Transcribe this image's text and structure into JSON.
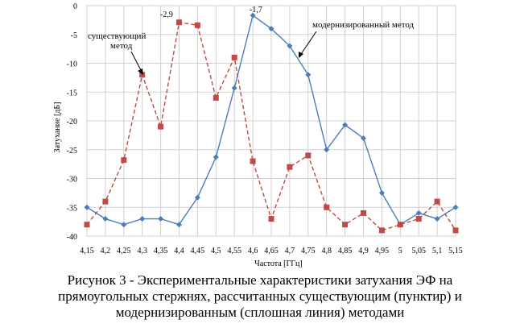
{
  "chart_data": {
    "type": "line",
    "xlabel": "Частота [ГГц]",
    "ylabel": "Затухание [дБ]",
    "categories": [
      "4,15",
      "4,2",
      "4,25",
      "4,3",
      "4,35",
      "4,4",
      "4,45",
      "4,5",
      "4,55",
      "4,6",
      "4,65",
      "4,7",
      "4,75",
      "4,8",
      "4,85",
      "4,9",
      "4,95",
      "5",
      "5,05",
      "5,1",
      "5,15"
    ],
    "y_ticks": [
      "0",
      "-5",
      "-10",
      "-15",
      "-20",
      "-25",
      "-30",
      "-35",
      "-40"
    ],
    "ylim": [
      -40,
      0
    ],
    "grid": true,
    "legend": "none",
    "series": [
      {
        "key": "modern",
        "color": "#4a7ebb",
        "marker": "diamond",
        "dashed": false,
        "values": [
          -35,
          -37,
          -38,
          -37,
          -37,
          -38,
          -33.3,
          -26.3,
          -14.3,
          -1.7,
          -4,
          -7,
          -12,
          -25,
          -20.7,
          -23,
          -32.5,
          -38,
          -36,
          -37,
          -35
        ]
      },
      {
        "key": "existing",
        "color": "#be4b48",
        "marker": "square",
        "dashed": true,
        "values": [
          -38,
          -34,
          -26.8,
          -12,
          -21,
          -2.9,
          -3.4,
          -16,
          -9,
          -27,
          -37,
          -28,
          -26,
          -35,
          -38,
          -36,
          -39,
          -38,
          -37,
          -34,
          -39
        ]
      }
    ],
    "annotations": {
      "existing_label_1": "существующий",
      "existing_label_2": "метод",
      "modern_label": "модернизированный метод",
      "peak_existing": "-2,9",
      "peak_modern": "-1,7"
    }
  },
  "caption": {
    "line1": "Рисунок 3 -  Экспериментальные характеристики затухания ЭФ на",
    "line2": "прямоугольных стержнях, рассчитанных существующим (пунктир) и",
    "line3": "модернизированным (сплошная линия) методами"
  }
}
